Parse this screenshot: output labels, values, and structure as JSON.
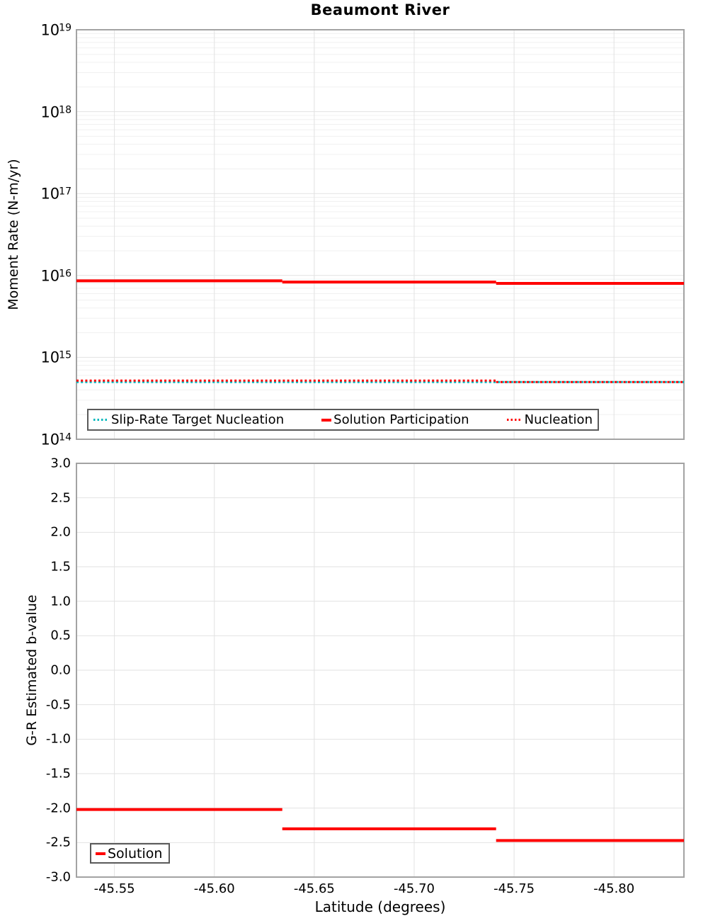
{
  "title": "Beaumont River",
  "colors": {
    "red": "#ff0000",
    "teal": "#00b8bd",
    "grid_major": "#e2e2e2",
    "grid_minor": "#f0f0f0",
    "axis_border": "#a3a3a3",
    "legend_border": "#5a5a5a",
    "text": "#000000"
  },
  "chart_data": [
    {
      "type": "line",
      "title": "Beaumont River",
      "ylabel": "Moment Rate (N-m/yr)",
      "yscale": "log",
      "ylim": [
        100000000000000.0,
        1e+19
      ],
      "xlim": [
        -45.531,
        -45.835
      ],
      "grid": true,
      "legend_position": "lower-left-inside",
      "ytick_exponents": [
        19,
        18,
        17,
        16,
        15,
        14
      ],
      "series": [
        {
          "name": "Slip-Rate Target Nucleation",
          "color_key": "teal",
          "style": "dotted",
          "steps": [
            {
              "x0": -45.531,
              "x1": -45.835,
              "value": 500000000000000.0
            }
          ]
        },
        {
          "name": "Solution Participation",
          "color_key": "red",
          "style": "solid",
          "steps": [
            {
              "x0": -45.531,
              "x1": -45.634,
              "value": 8600000000000000.0
            },
            {
              "x0": -45.634,
              "x1": -45.741,
              "value": 8300000000000000.0
            },
            {
              "x0": -45.741,
              "x1": -45.835,
              "value": 8000000000000000.0
            }
          ]
        },
        {
          "name": "Nucleation",
          "color_key": "red",
          "style": "dotted",
          "steps": [
            {
              "x0": -45.531,
              "x1": -45.741,
              "value": 520000000000000.0
            },
            {
              "x0": -45.741,
              "x1": -45.835,
              "value": 500000000000000.0
            }
          ]
        }
      ]
    },
    {
      "type": "line",
      "ylabel": "G-R Estimated b-value",
      "xlabel": "Latitude (degrees)",
      "ylim": [
        -3.0,
        3.0
      ],
      "xlim": [
        -45.531,
        -45.835
      ],
      "grid": true,
      "legend_position": "lower-left-inside",
      "ytick_labels": [
        "3.0",
        "2.5",
        "2.0",
        "1.5",
        "1.0",
        "0.5",
        "0.0",
        "-0.5",
        "-1.0",
        "-1.5",
        "-2.0",
        "-2.5",
        "-3.0"
      ],
      "ytick_values": [
        3.0,
        2.5,
        2.0,
        1.5,
        1.0,
        0.5,
        0.0,
        -0.5,
        -1.0,
        -1.5,
        -2.0,
        -2.5,
        -3.0
      ],
      "xtick_labels": [
        "-45.55",
        "-45.60",
        "-45.65",
        "-45.70",
        "-45.75",
        "-45.80"
      ],
      "xtick_values": [
        -45.55,
        -45.6,
        -45.65,
        -45.7,
        -45.75,
        -45.8
      ],
      "series": [
        {
          "name": "Solution",
          "color_key": "red",
          "style": "solid",
          "steps": [
            {
              "x0": -45.531,
              "x1": -45.634,
              "value": -2.02
            },
            {
              "x0": -45.634,
              "x1": -45.741,
              "value": -2.3
            },
            {
              "x0": -45.741,
              "x1": -45.835,
              "value": -2.47
            }
          ]
        }
      ]
    }
  ]
}
